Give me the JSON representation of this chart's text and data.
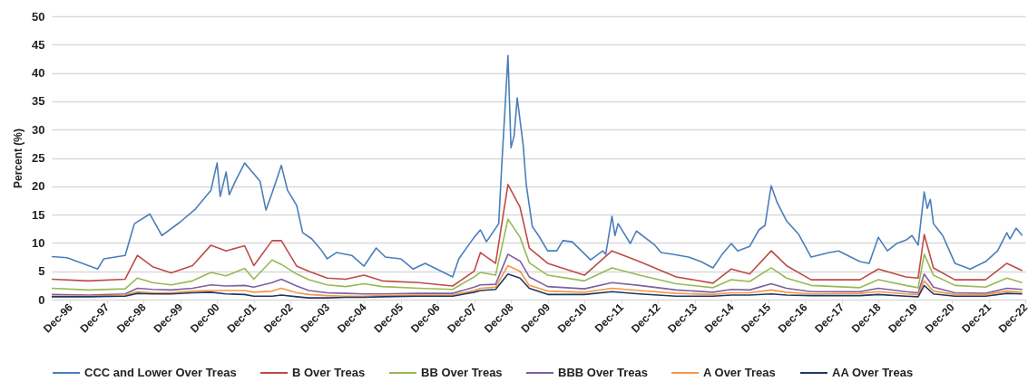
{
  "chart_data": {
    "type": "line",
    "ylabel": "Percent (%)",
    "grid": "y",
    "legend": "bottom",
    "ylim": [
      0,
      50
    ],
    "yticks": [
      0,
      5,
      10,
      15,
      20,
      25,
      30,
      35,
      40,
      45,
      50
    ],
    "xlim": [
      "1996-06",
      "2022-12"
    ],
    "xticks": [
      {
        "value": "1996-12",
        "label": "Dec-96"
      },
      {
        "value": "1997-12",
        "label": "Dec-97"
      },
      {
        "value": "1998-12",
        "label": "Dec-98"
      },
      {
        "value": "1999-12",
        "label": "Dec-99"
      },
      {
        "value": "2000-12",
        "label": "Dec-00"
      },
      {
        "value": "2001-12",
        "label": "Dec-01"
      },
      {
        "value": "2002-12",
        "label": "Dec-02"
      },
      {
        "value": "2003-12",
        "label": "Dec-03"
      },
      {
        "value": "2004-12",
        "label": "Dec-04"
      },
      {
        "value": "2005-12",
        "label": "Dec-05"
      },
      {
        "value": "2006-12",
        "label": "Dec-06"
      },
      {
        "value": "2007-12",
        "label": "Dec-07"
      },
      {
        "value": "2008-12",
        "label": "Dec-08"
      },
      {
        "value": "2009-12",
        "label": "Dec-09"
      },
      {
        "value": "2010-12",
        "label": "Dec-10"
      },
      {
        "value": "2011-12",
        "label": "Dec-11"
      },
      {
        "value": "2012-12",
        "label": "Dec-12"
      },
      {
        "value": "2013-12",
        "label": "Dec-13"
      },
      {
        "value": "2014-12",
        "label": "Dec-14"
      },
      {
        "value": "2015-12",
        "label": "Dec-15"
      },
      {
        "value": "2016-12",
        "label": "Dec-16"
      },
      {
        "value": "2017-12",
        "label": "Dec-17"
      },
      {
        "value": "2018-12",
        "label": "Dec-18"
      },
      {
        "value": "2019-12",
        "label": "Dec-19"
      },
      {
        "value": "2020-12",
        "label": "Dec-20"
      },
      {
        "value": "2021-12",
        "label": "Dec-21"
      },
      {
        "value": "2022-12",
        "label": "Dec-22"
      }
    ],
    "x": [
      "1996-06",
      "1997-06",
      "1998-06",
      "1998-10",
      "1999-03",
      "1999-09",
      "2000-04",
      "2000-10",
      "2001-03",
      "2001-09",
      "2001-12",
      "2002-06",
      "2002-09",
      "2003-02",
      "2003-06",
      "2003-12",
      "2004-06",
      "2004-12",
      "2005-06",
      "2006-06",
      "2007-05",
      "2007-12",
      "2008-02",
      "2008-07",
      "2008-11",
      "2009-03",
      "2009-06",
      "2009-12",
      "2010-12",
      "2011-09",
      "2012-06",
      "2013-06",
      "2014-06",
      "2014-12",
      "2015-06",
      "2016-01",
      "2016-06",
      "2017-02",
      "2018-06",
      "2018-12",
      "2019-09",
      "2020-01",
      "2020-03",
      "2020-06",
      "2021-01",
      "2021-11",
      "2022-06",
      "2022-11"
    ],
    "series": [
      {
        "name": "CCC and Lower Over Treas",
        "color": "#4a7ebb",
        "x": [
          "1996-06",
          "1996-11",
          "1997-09",
          "1997-11",
          "1998-06",
          "1998-09",
          "1999-02",
          "1999-06",
          "1999-12",
          "2000-05",
          "2000-10",
          "2000-12",
          "2001-01",
          "2001-03",
          "2001-04",
          "2001-06",
          "2001-09",
          "2001-12",
          "2002-02",
          "2002-04",
          "2002-06",
          "2002-09",
          "2002-11",
          "2003-02",
          "2003-04",
          "2003-07",
          "2003-10",
          "2003-12",
          "2004-03",
          "2004-08",
          "2004-12",
          "2005-04",
          "2005-07",
          "2005-12",
          "2006-04",
          "2006-08",
          "2007-02",
          "2007-05",
          "2007-07",
          "2007-12",
          "2008-02",
          "2008-04",
          "2008-08",
          "2008-09",
          "2008-10",
          "2008-11",
          "2008-12",
          "2009-01",
          "2009-02",
          "2009-04",
          "2009-05",
          "2009-06",
          "2009-07",
          "2009-09",
          "2009-12",
          "2010-03",
          "2010-05",
          "2010-08",
          "2010-11",
          "2011-02",
          "2011-06",
          "2011-07",
          "2011-09",
          "2011-10",
          "2011-11",
          "2012-03",
          "2012-05",
          "2012-11",
          "2013-01",
          "2013-05",
          "2013-10",
          "2014-02",
          "2014-06",
          "2014-09",
          "2014-12",
          "2015-02",
          "2015-06",
          "2015-09",
          "2015-11",
          "2015-12",
          "2016-01",
          "2016-03",
          "2016-06",
          "2016-10",
          "2017-02",
          "2017-08",
          "2017-11",
          "2018-06",
          "2018-09",
          "2018-12",
          "2019-03",
          "2019-06",
          "2019-09",
          "2019-11",
          "2020-01",
          "2020-03",
          "2020-04",
          "2020-05",
          "2020-06",
          "2020-09",
          "2021-01",
          "2021-06",
          "2021-11",
          "2022-03",
          "2022-06",
          "2022-07",
          "2022-09",
          "2022-11"
        ],
        "values": [
          7.6,
          7.4,
          5.4,
          7.2,
          7.8,
          13.4,
          15.1,
          11.3,
          13.7,
          16,
          19.3,
          24.1,
          18.2,
          22.5,
          18.5,
          20.9,
          24.1,
          22.2,
          20.9,
          15.8,
          18.8,
          23.7,
          19.3,
          16.6,
          11.8,
          10.7,
          8.8,
          7.2,
          8.3,
          7.8,
          5.9,
          9.1,
          7.5,
          7.2,
          5.4,
          6.4,
          4.8,
          4.0,
          7.2,
          11.0,
          12.3,
          10.2,
          13.4,
          24,
          33.2,
          43.1,
          26.8,
          28.9,
          35.6,
          27.3,
          20.4,
          16.6,
          12.9,
          11.3,
          8.6,
          8.6,
          10.4,
          10.2,
          8.6,
          7.0,
          8.6,
          8.0,
          14.7,
          11.3,
          13.4,
          9.9,
          12.1,
          9.6,
          8.3,
          8.0,
          7.5,
          6.7,
          5.6,
          8.0,
          9.9,
          8.6,
          9.4,
          12.3,
          13.1,
          16.6,
          20.1,
          17.1,
          13.9,
          11.5,
          7.5,
          8.3,
          8.6,
          6.7,
          6.4,
          11.0,
          8.6,
          9.9,
          10.5,
          11.3,
          9.6,
          19.0,
          16.1,
          17.7,
          13.4,
          11.3,
          6.4,
          5.4,
          6.7,
          8.6,
          11.8,
          10.7,
          12.6,
          11.3
        ]
      },
      {
        "name": "B Over Treas",
        "color": "#be4b48",
        "values": [
          3.6,
          3.3,
          3.6,
          7.8,
          5.8,
          4.7,
          6.0,
          9.6,
          8.6,
          9.5,
          6.0,
          10.4,
          10.4,
          5.9,
          5.0,
          3.8,
          3.6,
          4.3,
          3.3,
          3.0,
          2.4,
          5.0,
          8.3,
          6.4,
          20.3,
          16.3,
          9.1,
          6.4,
          4.3,
          8.6,
          6.7,
          4.0,
          2.9,
          5.4,
          4.5,
          8.6,
          6.0,
          3.5,
          3.5,
          5.4,
          4.0,
          3.8,
          11.5,
          5.6,
          3.5,
          3.5,
          6.4,
          5.1
        ]
      },
      {
        "name": "BB Over Treas",
        "color": "#98b954",
        "values": [
          2.0,
          1.7,
          1.9,
          3.8,
          3.0,
          2.6,
          3.3,
          4.8,
          4.2,
          5.5,
          3.6,
          7.0,
          6.2,
          4.5,
          3.5,
          2.6,
          2.3,
          2.8,
          2.3,
          2.0,
          1.8,
          4.0,
          4.8,
          4.3,
          14.2,
          11.0,
          6.5,
          4.3,
          3.3,
          5.6,
          4.3,
          2.8,
          2.1,
          3.5,
          3.2,
          5.6,
          3.8,
          2.5,
          2.1,
          3.5,
          2.5,
          2.1,
          8.0,
          4.3,
          2.5,
          2.2,
          3.8,
          3.0
        ]
      },
      {
        "name": "BBB Over Treas",
        "color": "#7d60a0",
        "values": [
          0.9,
          0.8,
          1.0,
          2.0,
          1.8,
          1.7,
          2.0,
          2.6,
          2.4,
          2.5,
          2.2,
          3.0,
          3.6,
          2.4,
          1.6,
          1.2,
          1.1,
          1.0,
          1.0,
          1.1,
          1.1,
          2.2,
          2.6,
          2.7,
          8.0,
          6.8,
          4.0,
          2.3,
          1.9,
          3.0,
          2.5,
          1.7,
          1.3,
          1.8,
          1.7,
          2.8,
          2.0,
          1.4,
          1.4,
          2.0,
          1.4,
          1.2,
          4.5,
          2.2,
          1.2,
          1.1,
          2.0,
          1.8
        ]
      },
      {
        "name": "A Over Treas",
        "color": "#f79646",
        "values": [
          0.6,
          0.6,
          0.8,
          1.4,
          1.2,
          1.2,
          1.5,
          1.6,
          1.6,
          1.6,
          1.3,
          1.5,
          2.0,
          1.2,
          0.9,
          0.7,
          0.6,
          0.6,
          0.7,
          0.8,
          0.8,
          1.6,
          2.0,
          2.2,
          6.0,
          5.0,
          2.5,
          1.5,
          1.3,
          2.0,
          1.6,
          1.1,
          0.9,
          1.2,
          1.2,
          1.7,
          1.3,
          1.0,
          1.1,
          1.4,
          1.0,
          0.9,
          3.3,
          1.5,
          0.9,
          0.9,
          1.5,
          1.3
        ]
      },
      {
        "name": "AA Over Treas",
        "color": "#1f3864",
        "values": [
          0.5,
          0.5,
          0.6,
          1.1,
          1.0,
          1.0,
          1.2,
          1.3,
          1.0,
          0.9,
          0.6,
          0.6,
          0.8,
          0.5,
          0.3,
          0.3,
          0.4,
          0.4,
          0.5,
          0.6,
          0.6,
          1.3,
          1.6,
          1.8,
          4.5,
          3.8,
          2.0,
          0.9,
          0.9,
          1.4,
          1.0,
          0.6,
          0.6,
          0.8,
          0.8,
          1.0,
          0.8,
          0.7,
          0.7,
          0.9,
          0.6,
          0.5,
          2.5,
          1.0,
          0.6,
          0.6,
          1.1,
          1.0
        ]
      }
    ]
  }
}
